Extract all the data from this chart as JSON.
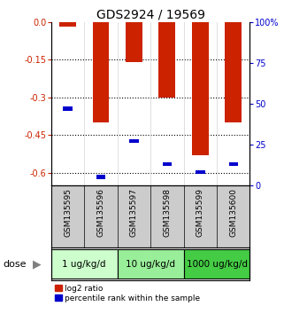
{
  "title": "GDS2924 / 19569",
  "samples": [
    "GSM135595",
    "GSM135596",
    "GSM135597",
    "GSM135598",
    "GSM135599",
    "GSM135600"
  ],
  "log2_ratios": [
    -0.02,
    -0.4,
    -0.16,
    -0.3,
    -0.53,
    -0.4
  ],
  "percentile_ranks": [
    47,
    5,
    27,
    13,
    8,
    13
  ],
  "dose_groups": [
    {
      "label": "1 ug/kg/d",
      "samples": [
        0,
        1
      ],
      "color": "#ccffcc"
    },
    {
      "label": "10 ug/kg/d",
      "samples": [
        2,
        3
      ],
      "color": "#99ee99"
    },
    {
      "label": "1000 ug/kg/d",
      "samples": [
        4,
        5
      ],
      "color": "#44cc44"
    }
  ],
  "ylim_left": [
    -0.65,
    0.0
  ],
  "ylim_right": [
    0,
    100
  ],
  "left_ticks": [
    0.0,
    -0.15,
    -0.3,
    -0.45,
    -0.6
  ],
  "right_ticks": [
    0,
    25,
    50,
    75,
    100
  ],
  "bar_color": "#cc2200",
  "pct_color": "#0000cc",
  "bar_width": 0.5,
  "pct_bar_width": 0.28,
  "sample_bg_color": "#cccccc",
  "legend_log2": "log2 ratio",
  "legend_pct": "percentile rank within the sample",
  "title_fontsize": 10,
  "tick_fontsize": 7,
  "sample_label_fontsize": 6.5
}
